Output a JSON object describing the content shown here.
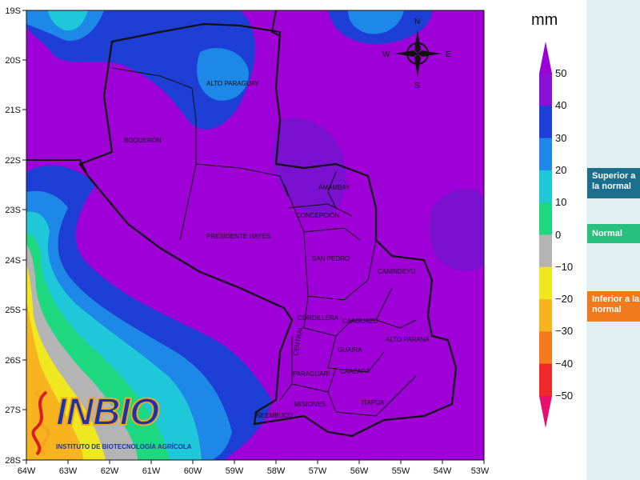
{
  "map": {
    "lat_labels": [
      "19S",
      "20S",
      "21S",
      "22S",
      "23S",
      "24S",
      "25S",
      "26S",
      "27S",
      "28S"
    ],
    "lon_labels": [
      "64W",
      "63W",
      "62W",
      "61W",
      "60W",
      "59W",
      "58W",
      "57W",
      "56W",
      "55W",
      "54W",
      "53W"
    ],
    "departments": [
      "ALTO PARAGUAY",
      "BOQUERÓN",
      "PRESIDENTE HAYES",
      "AMAMBAY",
      "CONCEPCIÓN",
      "SAN PEDRO",
      "CANINDEYU",
      "CORDILLERA",
      "CAAGUAZÚ",
      "CENTRAL",
      "GUAIRA",
      "ALTO PARANÁ",
      "PARAGUARÍ",
      "CAAZAPÁ",
      "MISIONES",
      "ITAPÚA",
      "ÑEEMBUCÚ"
    ]
  },
  "compass": {
    "n": "N",
    "s": "S",
    "e": "E",
    "w": "W"
  },
  "legend": {
    "unit": "mm",
    "ticks": [
      "50",
      "40",
      "30",
      "20",
      "10",
      "0",
      "−10",
      "−20",
      "−30",
      "−40",
      "−50"
    ],
    "colors": [
      "#9b00d8",
      "#8a10d8",
      "#1e3fd6",
      "#1e88e8",
      "#1ec8d8",
      "#1ed880",
      "#b4b4b4",
      "#f0e81e",
      "#f8b41e",
      "#f8781e",
      "#f02828",
      "#e8106e"
    ]
  },
  "badges": {
    "above": "Superior a la normal",
    "normal": "Normal",
    "below": "Inferior a la normal"
  },
  "logo": {
    "main": "INBIO",
    "sub": "INSTITUTO DE BIOTECNOLOGÍA AGRÍCOLA"
  },
  "colors": {
    "map_base": "#a000d8",
    "border": "#111111"
  }
}
